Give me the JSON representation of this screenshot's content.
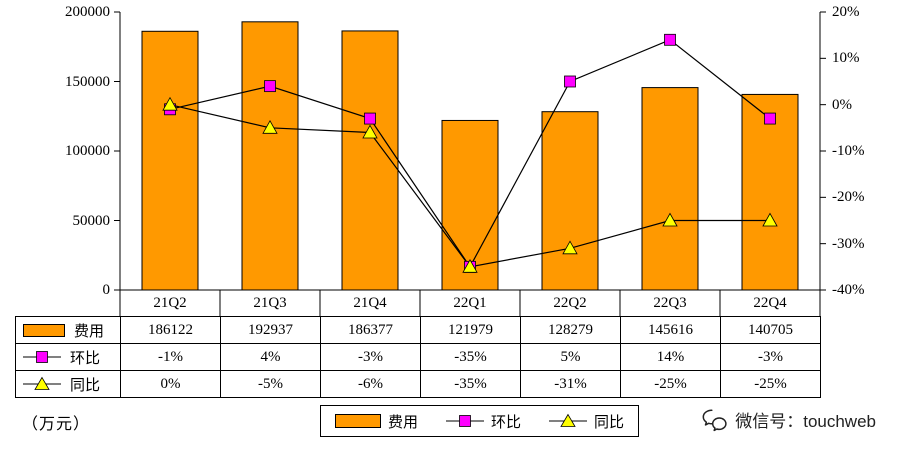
{
  "chart_data": {
    "type": "bar+line",
    "categories": [
      "21Q2",
      "21Q3",
      "21Q4",
      "22Q1",
      "22Q2",
      "22Q3",
      "22Q4"
    ],
    "series": [
      {
        "name": "费用",
        "type": "bar",
        "axis": "left",
        "values": [
          186122,
          192937,
          186377,
          121979,
          128279,
          145616,
          140705
        ]
      },
      {
        "name": "环比",
        "type": "line",
        "axis": "right",
        "marker": "square",
        "unit": "%",
        "values": [
          -1,
          4,
          -3,
          -35,
          5,
          14,
          -3
        ]
      },
      {
        "name": "同比",
        "type": "line",
        "axis": "right",
        "marker": "triangle",
        "unit": "%",
        "values": [
          0,
          -5,
          -6,
          -35,
          -31,
          -25,
          -25
        ]
      }
    ],
    "left_axis": {
      "min": 0,
      "max": 200000,
      "tick_labels": [
        "200000",
        "150000",
        "100000",
        "50000",
        "0"
      ]
    },
    "right_axis": {
      "min": -40,
      "max": 20,
      "tick_labels": [
        "20%",
        "10%",
        "0%",
        "-10%",
        "-20%",
        "-30%",
        "-40%"
      ]
    },
    "grid": false,
    "legend_position": "bottom",
    "title": ""
  },
  "table": {
    "rows": [
      {
        "label": "费用",
        "swatch": "bar",
        "values": [
          "186122",
          "192937",
          "186377",
          "121979",
          "128279",
          "145616",
          "140705"
        ]
      },
      {
        "label": "环比",
        "swatch": "square",
        "values": [
          "-1%",
          "4%",
          "-3%",
          "-35%",
          "5%",
          "14%",
          "-3%"
        ]
      },
      {
        "label": "同比",
        "swatch": "triangle",
        "values": [
          "0%",
          "-5%",
          "-6%",
          "-35%",
          "-31%",
          "-25%",
          "-25%"
        ]
      }
    ]
  },
  "footer": {
    "unit_label": "（万元）",
    "legend": [
      {
        "label": "费用",
        "swatch": "bar"
      },
      {
        "label": "环比",
        "swatch": "square"
      },
      {
        "label": "同比",
        "swatch": "triangle"
      }
    ],
    "watermark": {
      "icon": "wechat-icon",
      "text": "微信号：touchweb"
    }
  },
  "colors": {
    "bar": "#FF9900",
    "square": "#FF00FF",
    "triangle": "#FFFF00",
    "line": "#000000",
    "axis": "#000000"
  }
}
